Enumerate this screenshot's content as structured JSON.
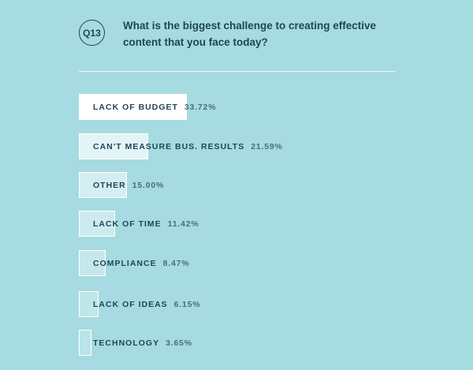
{
  "question": {
    "number": "Q13",
    "text": "What is the biggest challenge to creating effective content that you face today?"
  },
  "colors": {
    "background": "#a6dbe1",
    "text": "#1f4656",
    "bar_border": "#ffffff"
  },
  "chart_data": {
    "type": "bar",
    "orientation": "horizontal",
    "title": "",
    "xlabel": "",
    "ylabel": "",
    "categories": [
      "LACK OF BUDGET",
      "CAN'T MEASURE BUS. RESULTS",
      "OTHER",
      "LACK OF TIME",
      "COMPLIANCE",
      "LACK OF IDEAS",
      "TECHNOLOGY"
    ],
    "values": [
      33.72,
      21.59,
      15.0,
      11.42,
      8.47,
      6.15,
      3.65
    ],
    "value_labels": [
      "33.72%",
      "21.59%",
      "15.00%",
      "11.42%",
      "8.47%",
      "6.15%",
      "3.65%"
    ],
    "xlim": [
      0,
      33.72
    ],
    "grid": false,
    "legend": "none"
  }
}
